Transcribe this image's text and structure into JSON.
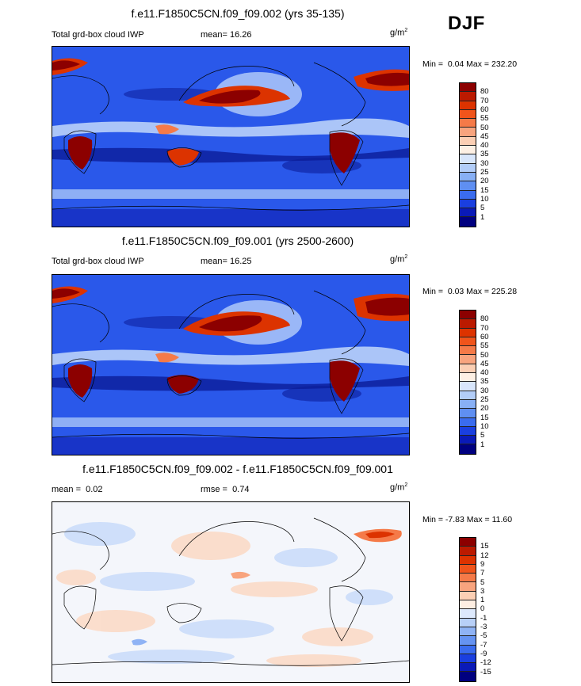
{
  "season": "DJF",
  "panels": [
    {
      "title": "f.e11.F1850C5CN.f09_f09.002 (yrs 35-135)",
      "left_label": "Total grd-box cloud IWP",
      "mean_label": "mean=",
      "mean_value": "16.26",
      "unit_base": "g/m",
      "unit_exp": "2",
      "min_label": "Min =",
      "min_value": "0.04",
      "max_label": "Max =",
      "max_value": "232.20",
      "levels": [
        "80",
        "70",
        "60",
        "55",
        "50",
        "45",
        "40",
        "35",
        "30",
        "25",
        "20",
        "15",
        "10",
        "5",
        "1"
      ],
      "colors": [
        "#8c0000",
        "#bb1a00",
        "#dd3300",
        "#f0541b",
        "#f57a48",
        "#f8a47e",
        "#fbcfb4",
        "#fdf0e4",
        "#d8e6fb",
        "#b2cdf8",
        "#88b0f5",
        "#5f8ff2",
        "#3a6cef",
        "#1a3fe0",
        "#0a1ab8",
        "#000080"
      ]
    },
    {
      "title": "f.e11.F1850C5CN.f09_f09.001 (yrs 2500-2600)",
      "left_label": "Total grd-box cloud IWP",
      "mean_label": "mean=",
      "mean_value": "16.25",
      "unit_base": "g/m",
      "unit_exp": "2",
      "min_label": "Min =",
      "min_value": "0.03",
      "max_label": "Max =",
      "max_value": "225.28",
      "levels": [
        "80",
        "70",
        "60",
        "55",
        "50",
        "45",
        "40",
        "35",
        "30",
        "25",
        "20",
        "15",
        "10",
        "5",
        "1"
      ],
      "colors": [
        "#8c0000",
        "#bb1a00",
        "#dd3300",
        "#f0541b",
        "#f57a48",
        "#f8a47e",
        "#fbcfb4",
        "#fdf0e4",
        "#d8e6fb",
        "#b2cdf8",
        "#88b0f5",
        "#5f8ff2",
        "#3a6cef",
        "#1a3fe0",
        "#0a1ab8",
        "#000080"
      ]
    },
    {
      "title": "f.e11.F1850C5CN.f09_f09.002 - f.e11.F1850C5CN.f09_f09.001",
      "left_label": "mean =",
      "left_value": "0.02",
      "mean_label": "rmse =",
      "mean_value": "0.74",
      "unit_base": "g/m",
      "unit_exp": "2",
      "min_label": "Min =",
      "min_value": "-7.83",
      "max_label": "Max =",
      "max_value": "11.60",
      "levels": [
        "15",
        "12",
        "9",
        "7",
        "5",
        "3",
        "1",
        "0",
        "-1",
        "-3",
        "-5",
        "-7",
        "-9",
        "-12",
        "-15"
      ],
      "colors": [
        "#8c0000",
        "#bb1a00",
        "#dd3300",
        "#f0541b",
        "#f57a48",
        "#f8a47e",
        "#fbcfb4",
        "#fdeee2",
        "#dde9fc",
        "#b8d0f8",
        "#8fb3f5",
        "#6593f2",
        "#3a6cef",
        "#1a3fe0",
        "#0a1ab8",
        "#000080"
      ]
    }
  ]
}
